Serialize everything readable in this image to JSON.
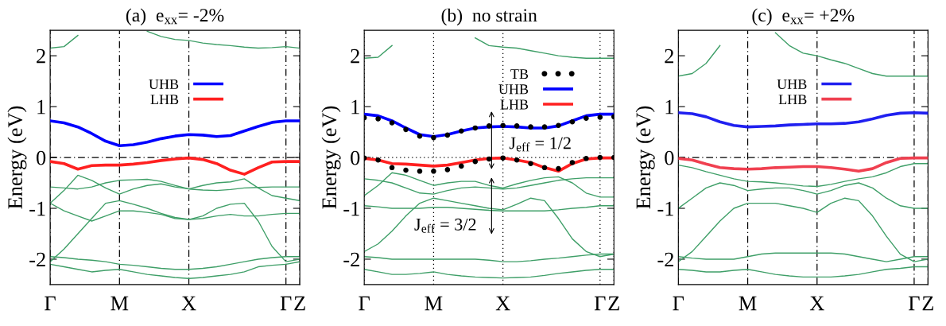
{
  "chart_data": [
    {
      "type": "line",
      "title": "(a)  e$_{xx}$= -2%",
      "ylabel": "Energy (eV)",
      "categories": [
        "Γ",
        null,
        null,
        null,
        null,
        "M",
        null,
        null,
        null,
        null,
        "X",
        null,
        null,
        null,
        null,
        null,
        null,
        "Γ",
        "Z"
      ],
      "ylim": [
        -2.5,
        2.5
      ],
      "yticks": [
        -2,
        -1,
        0,
        1,
        2
      ],
      "grid": "x",
      "legend": "top",
      "ref_lines": [
        {
          "axis": "y",
          "value": 0,
          "color": "#000000",
          "line_style": "dashed"
        }
      ],
      "series": [
        {
          "name": "UHB",
          "color": "#0000ff",
          "values": [
            0.72,
            0.68,
            0.6,
            0.47,
            0.32,
            0.23,
            0.25,
            0.3,
            0.37,
            0.42,
            0.45,
            0.44,
            0.41,
            0.43,
            0.52,
            0.61,
            0.69,
            0.72,
            0.72
          ]
        },
        {
          "name": "LHB",
          "color": "#ff2020",
          "values": [
            -0.08,
            -0.12,
            -0.23,
            -0.16,
            -0.15,
            -0.15,
            -0.13,
            -0.1,
            -0.06,
            -0.03,
            -0.01,
            -0.04,
            -0.12,
            -0.25,
            -0.33,
            -0.2,
            -0.09,
            -0.08,
            -0.08
          ]
        },
        {
          "color": "#3f9f68",
          "values": [
            -0.9,
            -0.65,
            -0.35,
            -0.45,
            -0.6,
            -0.72,
            -0.62,
            -0.55,
            -0.52,
            -0.58,
            -0.62,
            -0.55,
            -0.5,
            -0.48,
            -0.42,
            -0.6,
            -0.75,
            -0.8,
            -0.85
          ]
        },
        {
          "color": "#3f9f68",
          "values": [
            -0.58,
            -0.6,
            -0.62,
            -0.58,
            -0.5,
            -0.45,
            -0.44,
            -0.43,
            -0.47,
            -0.55,
            -0.62,
            -0.64,
            -0.65,
            -0.63,
            -0.6,
            -0.59,
            -0.58,
            -0.58,
            -0.58
          ]
        },
        {
          "color": "#3f9f68",
          "values": [
            -2.05,
            -1.8,
            -1.5,
            -1.2,
            -0.9,
            -0.85,
            -0.92,
            -1.0,
            -1.1,
            -1.18,
            -1.22,
            -1.15,
            -1.0,
            -0.92,
            -0.9,
            -1.25,
            -1.75,
            -2.05,
            -2.0
          ]
        },
        {
          "color": "#3f9f68",
          "values": [
            -0.9,
            -1.05,
            -1.15,
            -1.25,
            -1.15,
            -1.05,
            -1.05,
            -1.08,
            -1.12,
            -1.2,
            -1.22,
            -1.2,
            -1.15,
            -1.12,
            -1.15,
            -1.15,
            -1.12,
            -1.1,
            -1.1
          ]
        },
        {
          "color": "#3f9f68",
          "values": [
            -1.95,
            -1.97,
            -2.0,
            -2.02,
            -2.05,
            -2.1,
            -2.12,
            -2.15,
            -2.18,
            -2.2,
            -2.2,
            -2.18,
            -2.15,
            -2.1,
            -2.05,
            -2.0,
            -1.97,
            -1.95,
            -1.95
          ]
        },
        {
          "color": "#3f9f68",
          "values": [
            -2.1,
            -2.15,
            -2.2,
            -2.25,
            -2.22,
            -2.2,
            -2.25,
            -2.3,
            -2.33,
            -2.36,
            -2.38,
            -2.36,
            -2.33,
            -2.3,
            -2.25,
            -2.15,
            -2.12,
            -2.1,
            -2.05
          ]
        },
        {
          "color": "#3f9f68",
          "values": [
            2.15,
            2.18,
            2.4,
            null,
            null,
            null,
            null,
            null,
            null,
            null,
            null,
            null,
            null,
            null,
            null,
            null,
            null,
            null,
            null
          ]
        },
        {
          "color": "#3f9f68",
          "values": [
            null,
            null,
            null,
            null,
            null,
            null,
            null,
            2.48,
            2.38,
            2.32,
            2.3,
            2.25,
            2.22,
            2.2,
            2.17,
            2.15,
            2.16,
            2.18,
            2.15
          ]
        }
      ]
    },
    {
      "type": "line",
      "title": "(b)  no strain",
      "ylabel": "Energy (eV)",
      "categories": [
        "Γ",
        null,
        null,
        null,
        null,
        "M",
        null,
        null,
        null,
        null,
        "X",
        null,
        null,
        null,
        null,
        null,
        null,
        "Γ",
        "Z"
      ],
      "ylim": [
        -2.5,
        2.5
      ],
      "yticks": [
        -2,
        -1,
        0,
        1,
        2
      ],
      "grid": "x",
      "legend": "top right",
      "annotations": [
        "J$_{eff}$ = 1/2",
        "J$_{eff}$ = 3/2"
      ],
      "ref_lines": [
        {
          "axis": "y",
          "value": 0,
          "color": "#000000",
          "line_style": "dotted"
        }
      ],
      "series": [
        {
          "name": "TB",
          "type": "scatter",
          "marker": "circle",
          "color": "#000000",
          "values": [
            0.78,
            0.76,
            0.68,
            0.55,
            0.42,
            0.39,
            0.44,
            0.52,
            0.58,
            0.62,
            0.63,
            0.62,
            0.6,
            0.6,
            0.63,
            0.7,
            0.77,
            0.79,
            0.8
          ]
        },
        {
          "name": "UHB",
          "color": "#0000ff",
          "values": [
            0.85,
            0.82,
            0.72,
            0.58,
            0.45,
            0.41,
            0.45,
            0.52,
            0.58,
            0.6,
            0.61,
            0.6,
            0.58,
            0.58,
            0.62,
            0.72,
            0.82,
            0.85,
            0.85
          ]
        },
        {
          "name": "LHB",
          "color": "#ff2020",
          "values": [
            -0.02,
            -0.05,
            -0.12,
            -0.13,
            -0.15,
            -0.17,
            -0.15,
            -0.1,
            -0.05,
            -0.02,
            -0.01,
            -0.05,
            -0.1,
            -0.2,
            -0.27,
            -0.12,
            -0.03,
            -0.01,
            -0.01
          ]
        },
        {
          "type": "scatter",
          "marker": "circle",
          "color": "#000000",
          "values": [
            -0.01,
            -0.05,
            -0.2,
            -0.25,
            -0.27,
            -0.27,
            -0.24,
            -0.17,
            -0.08,
            -0.03,
            -0.01,
            -0.05,
            -0.12,
            -0.2,
            -0.22,
            -0.1,
            -0.02,
            0.0,
            0.0
          ]
        },
        {
          "color": "#3f9f68",
          "values": [
            -0.75,
            -0.55,
            -0.3,
            -0.35,
            -0.45,
            -0.55,
            -0.5,
            -0.47,
            -0.47,
            -0.55,
            -0.6,
            -0.52,
            -0.45,
            -0.4,
            -0.38,
            -0.5,
            -0.7,
            -0.78,
            -0.78
          ]
        },
        {
          "color": "#3f9f68",
          "values": [
            -0.42,
            -0.45,
            -0.5,
            -0.6,
            -0.7,
            -0.72,
            -0.65,
            -0.6,
            -0.58,
            -0.6,
            -0.62,
            -0.6,
            -0.55,
            -0.5,
            -0.45,
            -0.42,
            -0.4,
            -0.4,
            -0.4
          ]
        },
        {
          "color": "#3f9f68",
          "values": [
            -1.85,
            -1.7,
            -1.45,
            -1.15,
            -0.9,
            -0.8,
            -0.85,
            -0.9,
            -0.95,
            -1.0,
            -1.03,
            -0.92,
            -0.8,
            -0.85,
            -1.2,
            -1.6,
            -1.85,
            -1.95,
            -1.9
          ]
        },
        {
          "color": "#3f9f68",
          "values": [
            -0.95,
            -0.97,
            -1.0,
            -1.0,
            -1.0,
            -0.98,
            -0.98,
            -1.0,
            -1.02,
            -1.04,
            -1.05,
            -1.05,
            -1.05,
            -1.05,
            -1.03,
            -1.0,
            -0.98,
            -0.95,
            -0.95
          ]
        },
        {
          "color": "#3f9f68",
          "values": [
            -1.95,
            -1.97,
            -2.0,
            -2.0,
            -2.0,
            -2.0,
            -2.0,
            -2.0,
            -2.0,
            -2.02,
            -2.05,
            -2.05,
            -2.03,
            -2.0,
            -1.98,
            -1.95,
            -1.92,
            -1.9,
            -1.9
          ]
        },
        {
          "color": "#3f9f68",
          "values": [
            -2.2,
            -2.25,
            -2.3,
            -2.3,
            -2.28,
            -2.25,
            -2.3,
            -2.33,
            -2.35,
            -2.36,
            -2.37,
            -2.36,
            -2.35,
            -2.32,
            -2.28,
            -2.25,
            -2.22,
            -2.2,
            -2.2
          ]
        },
        {
          "color": "#3f9f68",
          "values": [
            1.95,
            1.97,
            2.2,
            null,
            null,
            null,
            null,
            null,
            null,
            null,
            null,
            null,
            null,
            null,
            null,
            null,
            null,
            null,
            null
          ]
        },
        {
          "color": "#3f9f68",
          "values": [
            null,
            null,
            null,
            null,
            null,
            null,
            null,
            null,
            2.35,
            2.2,
            2.17,
            2.15,
            2.1,
            2.05,
            2.0,
            1.97,
            1.95,
            1.95,
            1.95
          ]
        }
      ]
    },
    {
      "type": "line",
      "title": "(c)  e$_{xx}$= +2%",
      "ylabel": "Energy (eV)",
      "categories": [
        "Γ",
        null,
        null,
        null,
        null,
        "M",
        null,
        null,
        null,
        null,
        "X",
        null,
        null,
        null,
        null,
        null,
        null,
        "Γ",
        "Z"
      ],
      "ylim": [
        -2.5,
        2.5
      ],
      "yticks": [
        -2,
        -1,
        0,
        1,
        2
      ],
      "grid": "x",
      "legend": "top",
      "ref_lines": [
        {
          "axis": "y",
          "value": 0,
          "color": "#000000",
          "line_style": "dashed"
        }
      ],
      "series": [
        {
          "name": "UHB",
          "color": "#2020f0",
          "values": [
            0.88,
            0.86,
            0.8,
            0.7,
            0.63,
            0.6,
            0.61,
            0.62,
            0.64,
            0.65,
            0.66,
            0.66,
            0.67,
            0.7,
            0.76,
            0.83,
            0.87,
            0.88,
            0.87
          ]
        },
        {
          "name": "LHB",
          "color": "#f04050",
          "values": [
            -0.02,
            -0.05,
            -0.13,
            -0.2,
            -0.22,
            -0.23,
            -0.22,
            -0.2,
            -0.19,
            -0.18,
            -0.18,
            -0.2,
            -0.23,
            -0.27,
            -0.22,
            -0.1,
            -0.02,
            -0.01,
            -0.01
          ]
        },
        {
          "color": "#3f9f68",
          "values": [
            -1.0,
            -0.8,
            -0.6,
            -0.5,
            -0.55,
            -0.65,
            -0.62,
            -0.6,
            -0.6,
            -0.65,
            -0.72,
            -0.65,
            -0.55,
            -0.5,
            -0.6,
            -0.8,
            -0.95,
            -1.0,
            -1.0
          ]
        },
        {
          "color": "#3f9f68",
          "values": [
            -0.15,
            -0.2,
            -0.28,
            -0.35,
            -0.42,
            -0.47,
            -0.48,
            -0.5,
            -0.53,
            -0.56,
            -0.57,
            -0.53,
            -0.47,
            -0.42,
            -0.38,
            -0.3,
            -0.18,
            -0.12,
            -0.12
          ]
        },
        {
          "color": "#3f9f68",
          "values": [
            -2.05,
            -1.85,
            -1.55,
            -1.25,
            -1.0,
            -0.9,
            -0.9,
            -0.9,
            -0.95,
            -1.0,
            -1.08,
            -0.9,
            -0.8,
            -0.85,
            -1.15,
            -1.55,
            -1.9,
            -2.05,
            -2.0
          ]
        },
        {
          "color": "#3f9f68",
          "values": [
            -1.95,
            -1.98,
            -2.0,
            -2.0,
            -2.0,
            -1.95,
            -1.9,
            -1.88,
            -1.88,
            -1.88,
            -1.88,
            -1.88,
            -1.9,
            -1.95,
            -2.0,
            -2.05,
            -2.0,
            -1.95,
            -1.95
          ]
        },
        {
          "color": "#3f9f68",
          "values": [
            -2.2,
            -2.22,
            -2.25,
            -2.25,
            -2.22,
            -2.2,
            -2.25,
            -2.3,
            -2.33,
            -2.35,
            -2.35,
            -2.35,
            -2.33,
            -2.3,
            -2.25,
            -2.2,
            -2.18,
            -2.15,
            -2.15
          ]
        },
        {
          "color": "#3f9f68",
          "values": [
            1.6,
            1.65,
            1.85,
            2.2,
            null,
            null,
            null,
            null,
            null,
            null,
            null,
            null,
            null,
            null,
            null,
            null,
            null,
            null,
            null
          ]
        },
        {
          "color": "#3f9f68",
          "values": [
            null,
            null,
            null,
            null,
            null,
            null,
            null,
            2.45,
            2.2,
            2.05,
            2.0,
            1.92,
            1.85,
            1.75,
            1.65,
            1.6,
            1.6,
            1.6,
            1.6
          ]
        }
      ]
    }
  ]
}
